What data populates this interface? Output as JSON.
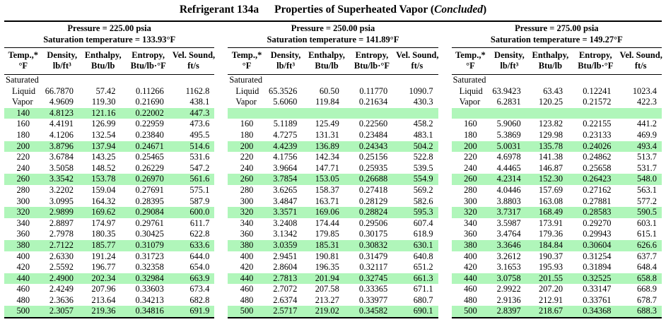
{
  "title": {
    "part1": "Refrigerant 134a",
    "part2_prefix": "Properties of Superheated Vapor (",
    "part2_italic": "Concluded",
    "part2_suffix": ")"
  },
  "highlight_color": "#b0f6ba",
  "columns": [
    {
      "line1": "Temp.,*",
      "line2": "°F"
    },
    {
      "line1": "Density,",
      "line2": "lb/ft³"
    },
    {
      "line1": "Enthalpy,",
      "line2": "Btu/lb"
    },
    {
      "line1": "Entropy,",
      "line2": "Btu/lb·°F"
    },
    {
      "line1": "Vel. Sound,",
      "line2": "ft/s"
    }
  ],
  "tables": [
    {
      "pressure_label": "Pressure = 225.00 psia",
      "saturation_label": "Saturation temperature = 133.93°F",
      "rows": [
        {
          "section": "Saturated"
        },
        {
          "c": [
            "Liquid",
            "66.7870",
            "57.42",
            "0.11266",
            "1162.8"
          ],
          "indent": true
        },
        {
          "c": [
            "Vapor",
            "4.9609",
            "119.30",
            "0.21690",
            "438.1"
          ],
          "indent": true
        },
        {
          "c": [
            "140",
            "4.8123",
            "121.16",
            "0.22002",
            "447.3"
          ],
          "green": true
        },
        {
          "c": [
            "160",
            "4.4191",
            "126.99",
            "0.22959",
            "473.6"
          ]
        },
        {
          "c": [
            "180",
            "4.1206",
            "132.54",
            "0.23840",
            "495.5"
          ]
        },
        {
          "c": [
            "200",
            "3.8796",
            "137.94",
            "0.24671",
            "514.6"
          ],
          "green": true
        },
        {
          "c": [
            "220",
            "3.6784",
            "143.25",
            "0.25465",
            "531.6"
          ]
        },
        {
          "c": [
            "240",
            "3.5058",
            "148.52",
            "0.26229",
            "547.2"
          ]
        },
        {
          "c": [
            "260",
            "3.3542",
            "153.78",
            "0.26970",
            "561.6"
          ],
          "green": true
        },
        {
          "c": [
            "280",
            "3.2202",
            "159.04",
            "0.27691",
            "575.1"
          ]
        },
        {
          "c": [
            "300",
            "3.0995",
            "164.32",
            "0.28395",
            "587.9"
          ]
        },
        {
          "c": [
            "320",
            "2.9899",
            "169.62",
            "0.29084",
            "600.0"
          ],
          "green": true
        },
        {
          "c": [
            "340",
            "2.8897",
            "174.97",
            "0.29761",
            "611.7"
          ]
        },
        {
          "c": [
            "360",
            "2.7978",
            "180.35",
            "0.30425",
            "622.8"
          ]
        },
        {
          "c": [
            "380",
            "2.7122",
            "185.77",
            "0.31079",
            "633.6"
          ],
          "green": true
        },
        {
          "c": [
            "400",
            "2.6330",
            "191.24",
            "0.31723",
            "644.0"
          ]
        },
        {
          "c": [
            "420",
            "2.5592",
            "196.77",
            "0.32358",
            "654.0"
          ]
        },
        {
          "c": [
            "440",
            "2.4900",
            "202.34",
            "0.32984",
            "663.9"
          ],
          "green": true
        },
        {
          "c": [
            "460",
            "2.4249",
            "207.96",
            "0.33603",
            "673.4"
          ]
        },
        {
          "c": [
            "480",
            "2.3636",
            "213.64",
            "0.34213",
            "682.8"
          ]
        },
        {
          "c": [
            "500",
            "2.3057",
            "219.36",
            "0.34816",
            "691.9"
          ],
          "green": true
        }
      ]
    },
    {
      "pressure_label": "Pressure = 250.00 psia",
      "saturation_label": "Saturation temperature = 141.89°F",
      "rows": [
        {
          "section": "Saturated"
        },
        {
          "c": [
            "Liquid",
            "65.3526",
            "60.50",
            "0.11770",
            "1090.7"
          ],
          "indent": true
        },
        {
          "c": [
            "Vapor",
            "5.6060",
            "119.84",
            "0.21634",
            "430.3"
          ],
          "indent": true
        },
        {
          "c": [
            "",
            "",
            "",
            "",
            ""
          ],
          "green": true
        },
        {
          "c": [
            "160",
            "5.1189",
            "125.49",
            "0.22560",
            "458.2"
          ]
        },
        {
          "c": [
            "180",
            "4.7275",
            "131.31",
            "0.23484",
            "483.1"
          ]
        },
        {
          "c": [
            "200",
            "4.4239",
            "136.89",
            "0.24343",
            "504.2"
          ],
          "green": true
        },
        {
          "c": [
            "220",
            "4.1756",
            "142.34",
            "0.25156",
            "522.8"
          ]
        },
        {
          "c": [
            "240",
            "3.9664",
            "147.71",
            "0.25935",
            "539.5"
          ]
        },
        {
          "c": [
            "260",
            "3.7854",
            "153.05",
            "0.26688",
            "554.9"
          ],
          "green": true
        },
        {
          "c": [
            "280",
            "3.6265",
            "158.37",
            "0.27418",
            "569.2"
          ]
        },
        {
          "c": [
            "300",
            "3.4847",
            "163.71",
            "0.28129",
            "582.6"
          ]
        },
        {
          "c": [
            "320",
            "3.3571",
            "169.06",
            "0.28824",
            "595.3"
          ],
          "green": true
        },
        {
          "c": [
            "340",
            "3.2408",
            "174.44",
            "0.29506",
            "607.4"
          ]
        },
        {
          "c": [
            "360",
            "3.1342",
            "179.85",
            "0.30175",
            "618.9"
          ]
        },
        {
          "c": [
            "380",
            "3.0359",
            "185.31",
            "0.30832",
            "630.1"
          ],
          "green": true
        },
        {
          "c": [
            "400",
            "2.9451",
            "190.81",
            "0.31479",
            "640.8"
          ]
        },
        {
          "c": [
            "420",
            "2.8604",
            "196.35",
            "0.32117",
            "651.2"
          ]
        },
        {
          "c": [
            "440",
            "2.7813",
            "201.94",
            "0.32745",
            "661.3"
          ],
          "green": true
        },
        {
          "c": [
            "460",
            "2.7072",
            "207.58",
            "0.33365",
            "671.1"
          ]
        },
        {
          "c": [
            "480",
            "2.6374",
            "213.27",
            "0.33977",
            "680.7"
          ]
        },
        {
          "c": [
            "500",
            "2.5717",
            "219.02",
            "0.34582",
            "690.1"
          ],
          "green": true
        }
      ]
    },
    {
      "pressure_label": "Pressure = 275.00 psia",
      "saturation_label": "Saturation temperature = 149.27°F",
      "rows": [
        {
          "section": "Saturated"
        },
        {
          "c": [
            "Liquid",
            "63.9423",
            "63.43",
            "0.12241",
            "1023.4"
          ],
          "indent": true
        },
        {
          "c": [
            "Vapor",
            "6.2831",
            "120.25",
            "0.21572",
            "422.3"
          ],
          "indent": true
        },
        {
          "c": [
            "",
            "",
            "",
            "",
            ""
          ],
          "green": true
        },
        {
          "c": [
            "160",
            "5.9060",
            "123.82",
            "0.22155",
            "441.2"
          ]
        },
        {
          "c": [
            "180",
            "5.3869",
            "129.98",
            "0.23133",
            "469.9"
          ]
        },
        {
          "c": [
            "200",
            "5.0031",
            "135.78",
            "0.24026",
            "493.4"
          ],
          "green": true
        },
        {
          "c": [
            "220",
            "4.6978",
            "141.38",
            "0.24862",
            "513.7"
          ]
        },
        {
          "c": [
            "240",
            "4.4465",
            "146.87",
            "0.25658",
            "531.7"
          ]
        },
        {
          "c": [
            "260",
            "4.2314",
            "152.30",
            "0.26423",
            "548.0"
          ],
          "green": true
        },
        {
          "c": [
            "280",
            "4.0446",
            "157.69",
            "0.27162",
            "563.1"
          ]
        },
        {
          "c": [
            "300",
            "3.8803",
            "163.08",
            "0.27881",
            "577.2"
          ]
        },
        {
          "c": [
            "320",
            "3.7317",
            "168.49",
            "0.28583",
            "590.5"
          ],
          "green": true
        },
        {
          "c": [
            "340",
            "3.5987",
            "173.91",
            "0.29270",
            "603.1"
          ]
        },
        {
          "c": [
            "360",
            "3.4764",
            "179.36",
            "0.29943",
            "615.1"
          ]
        },
        {
          "c": [
            "380",
            "3.3646",
            "184.84",
            "0.30604",
            "626.6"
          ],
          "green": true
        },
        {
          "c": [
            "400",
            "3.2612",
            "190.37",
            "0.31254",
            "637.7"
          ]
        },
        {
          "c": [
            "420",
            "3.1653",
            "195.93",
            "0.31894",
            "648.4"
          ]
        },
        {
          "c": [
            "440",
            "3.0758",
            "201.55",
            "0.32525",
            "658.8"
          ],
          "green": true
        },
        {
          "c": [
            "460",
            "2.9922",
            "207.20",
            "0.33147",
            "668.9"
          ]
        },
        {
          "c": [
            "480",
            "2.9136",
            "212.91",
            "0.33761",
            "678.7"
          ]
        },
        {
          "c": [
            "500",
            "2.8397",
            "218.67",
            "0.34368",
            "688.3"
          ],
          "green": true
        }
      ]
    }
  ]
}
